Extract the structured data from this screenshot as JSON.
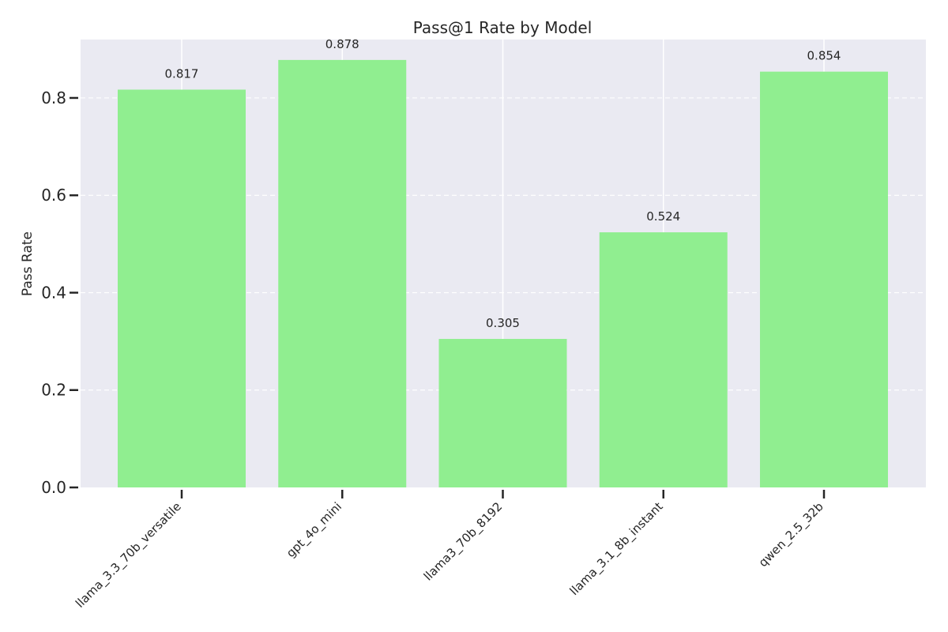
{
  "chart_data": {
    "type": "bar",
    "title": "Pass@1 Rate by Model",
    "xlabel": "",
    "ylabel": "Pass Rate",
    "categories": [
      "llama_3.3_70b_versatile",
      "gpt_4o_mini",
      "llama3_70b_8192",
      "llama_3.1_8b_instant",
      "qwen_2.5_32b"
    ],
    "values": [
      0.817,
      0.878,
      0.305,
      0.524,
      0.854
    ],
    "data_labels": [
      "0.817",
      "0.878",
      "0.305",
      "0.524",
      "0.854"
    ],
    "ylim": [
      0,
      0.92
    ],
    "yticks": [
      0.0,
      0.2,
      0.4,
      0.6,
      0.8
    ],
    "ytick_labels": [
      "0.0",
      "0.2",
      "0.4",
      "0.6",
      "0.8"
    ],
    "grid": true,
    "colors": {
      "bar": "#90ee90",
      "plot_background": "#eaeaf2",
      "grid": "#ffffff",
      "text": "#262626",
      "tick": "#262626"
    }
  }
}
